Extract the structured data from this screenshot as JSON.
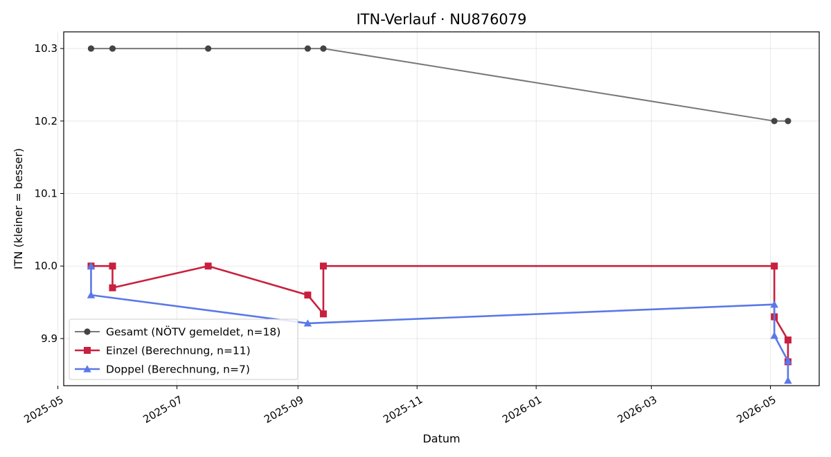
{
  "chart_data": {
    "type": "line",
    "title": "ITN-Verlauf · NU876079",
    "xlabel": "Datum",
    "ylabel": "ITN  (kleiner = besser)",
    "x_axis_type": "date",
    "xlim": [
      "2025-05-04",
      "2026-05-26"
    ],
    "ylim": [
      9.835,
      10.323
    ],
    "xticks": [
      "2025-05-01",
      "2025-07-01",
      "2025-09-01",
      "2025-11-01",
      "2026-01-01",
      "2026-03-01",
      "2026-05-01"
    ],
    "xtick_labels": [
      "2025-05",
      "2025-07",
      "2025-09",
      "2025-11",
      "2026-01",
      "2026-03",
      "2026-05"
    ],
    "yticks": [
      9.9,
      10.0,
      10.1,
      10.2,
      10.3
    ],
    "ytick_labels": [
      "9.9",
      "10.0",
      "10.1",
      "10.2",
      "10.3"
    ],
    "grid": true,
    "legend_position": "lower-left",
    "series": [
      {
        "name": "Gesamt (NÖTV gemeldet, n=18)",
        "color": "#444444",
        "line_color": "#777777",
        "marker": "circle",
        "x": [
          "2025-05-18",
          "2025-05-29",
          "2025-07-17",
          "2025-09-06",
          "2025-09-14",
          "2026-05-03",
          "2026-05-10"
        ],
        "y": [
          10.3,
          10.3,
          10.3,
          10.3,
          10.3,
          10.2,
          10.2
        ]
      },
      {
        "name": "Einzel (Berechnung, n=11)",
        "color": "#c8203e",
        "marker": "square",
        "x": [
          "2025-05-18",
          "2025-05-29",
          "2025-05-29",
          "2025-07-17",
          "2025-09-06",
          "2025-09-14",
          "2025-09-14",
          "2026-05-03",
          "2026-05-03",
          "2026-05-10",
          "2026-05-10"
        ],
        "y": [
          10.0,
          10.0,
          9.97,
          10.0,
          9.96,
          9.934,
          10.0,
          10.0,
          9.93,
          9.898,
          9.868
        ]
      },
      {
        "name": "Doppel (Berechnung, n=7)",
        "color": "#5a78e8",
        "marker": "triangle",
        "x": [
          "2025-05-18",
          "2025-05-18",
          "2025-09-06",
          "2026-05-03",
          "2026-05-03",
          "2026-05-10",
          "2026-05-10"
        ],
        "y": [
          10.0,
          9.96,
          9.921,
          9.947,
          9.904,
          9.869,
          9.842
        ]
      }
    ]
  }
}
